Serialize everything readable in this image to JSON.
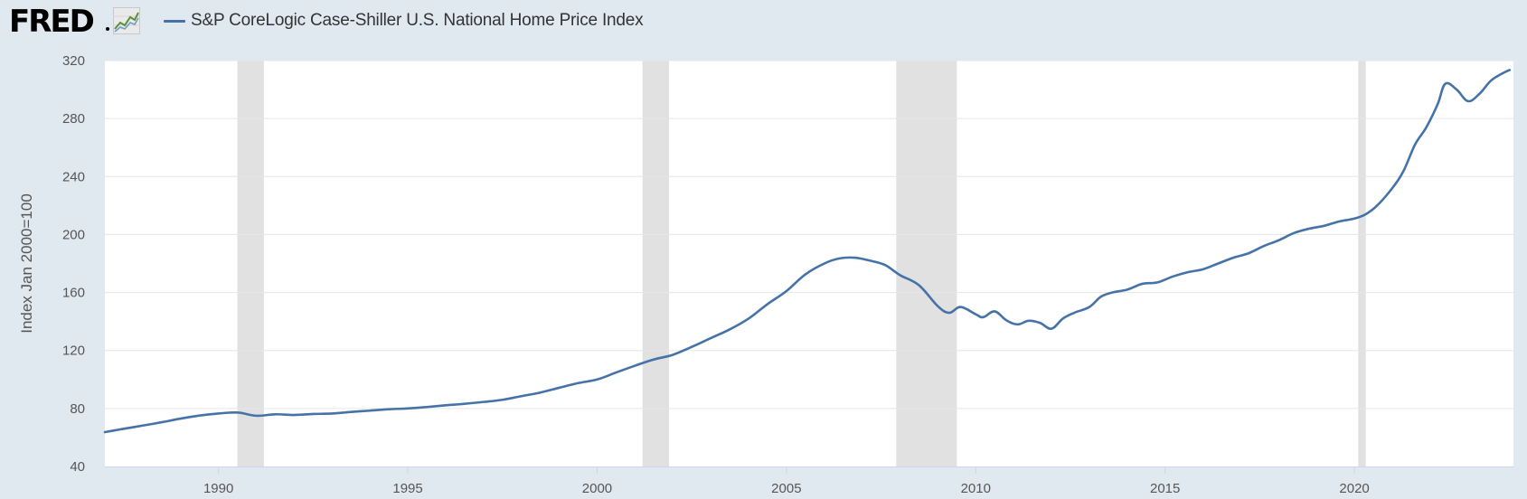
{
  "header": {
    "logo_text": "FRED",
    "legend_label": "S&P CoreLogic Case-Shiller U.S. National Home Price Index"
  },
  "colors": {
    "line": "#4572a7",
    "recession": "#e1e1e1",
    "grid": "#e6e6e6",
    "background": "#e1e9f0"
  },
  "chart_data": {
    "type": "line",
    "title": "S&P CoreLogic Case-Shiller U.S. National Home Price Index",
    "xlabel": "",
    "ylabel": "Index Jan 2000=100",
    "xlim": [
      1987.0,
      2024.2
    ],
    "ylim": [
      40,
      320
    ],
    "x_ticks": [
      1990,
      1995,
      2000,
      2005,
      2010,
      2015,
      2020
    ],
    "y_ticks": [
      40,
      80,
      120,
      160,
      200,
      240,
      280,
      320
    ],
    "grid": true,
    "recessions": [
      [
        1990.5,
        1991.2
      ],
      [
        2001.2,
        2001.9
      ],
      [
        2007.9,
        2009.5
      ],
      [
        2020.1,
        2020.3
      ]
    ],
    "series": [
      {
        "name": "S&P CoreLogic Case-Shiller U.S. National Home Price Index",
        "x": [
          1987.0,
          1987.5,
          1988.0,
          1988.5,
          1989.0,
          1989.5,
          1990.0,
          1990.5,
          1991.0,
          1991.5,
          1992.0,
          1992.5,
          1993.0,
          1993.5,
          1994.0,
          1994.5,
          1995.0,
          1995.5,
          1996.0,
          1996.5,
          1997.0,
          1997.5,
          1998.0,
          1998.5,
          1999.0,
          1999.5,
          2000.0,
          2000.5,
          2001.0,
          2001.5,
          2002.0,
          2002.5,
          2003.0,
          2003.5,
          2004.0,
          2004.5,
          2005.0,
          2005.5,
          2006.0,
          2006.4,
          2006.8,
          2007.2,
          2007.6,
          2008.0,
          2008.5,
          2009.0,
          2009.3,
          2009.6,
          2010.0,
          2010.2,
          2010.5,
          2010.8,
          2011.1,
          2011.4,
          2011.7,
          2012.0,
          2012.3,
          2012.6,
          2013.0,
          2013.3,
          2013.6,
          2014.0,
          2014.4,
          2014.8,
          2015.2,
          2015.6,
          2016.0,
          2016.4,
          2016.8,
          2017.2,
          2017.6,
          2018.0,
          2018.4,
          2018.8,
          2019.2,
          2019.6,
          2020.0,
          2020.3,
          2020.6,
          2021.0,
          2021.3,
          2021.6,
          2021.9,
          2022.2,
          2022.4,
          2022.7,
          2023.0,
          2023.3,
          2023.6,
          2023.9,
          2024.1
        ],
        "values": [
          63.7,
          66.0,
          68.2,
          70.5,
          73.0,
          75.1,
          76.5,
          77.2,
          75.0,
          76.0,
          75.5,
          76.2,
          76.5,
          77.6,
          78.5,
          79.5,
          80.0,
          81.0,
          82.2,
          83.2,
          84.5,
          86.0,
          88.5,
          91.0,
          94.3,
          97.5,
          100.0,
          104.8,
          109.5,
          113.8,
          117.0,
          122.5,
          128.5,
          134.5,
          142.0,
          152.0,
          161.0,
          172.5,
          180.0,
          183.5,
          184.0,
          182.0,
          179.0,
          172.0,
          165.0,
          150.5,
          146.0,
          150.0,
          145.0,
          143.0,
          147.0,
          141.0,
          138.0,
          140.5,
          139.0,
          135.0,
          142.0,
          146.0,
          150.0,
          157.0,
          160.0,
          162.0,
          166.0,
          167.0,
          171.0,
          174.0,
          176.0,
          180.0,
          184.0,
          187.0,
          192.0,
          196.0,
          201.0,
          204.0,
          206.0,
          209.0,
          211.0,
          214.0,
          220.0,
          232.0,
          244.0,
          262.0,
          274.0,
          290.0,
          304.0,
          300.0,
          292.0,
          297.0,
          306.0,
          311.0,
          313.5
        ]
      }
    ]
  }
}
